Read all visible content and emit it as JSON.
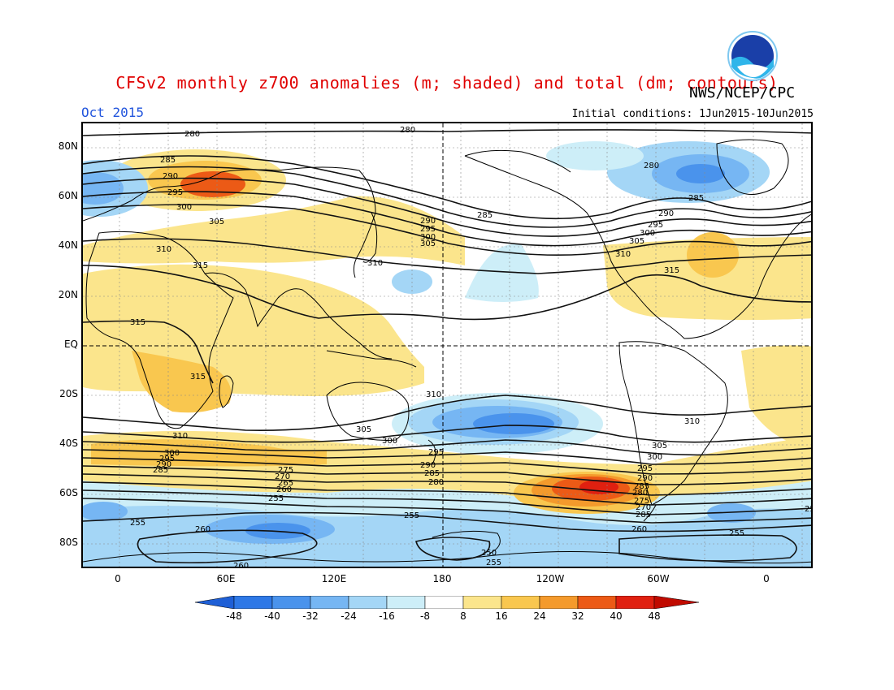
{
  "title": "CFSv2 monthly z700 anomalies (m; shaded) and total (dm; contours)",
  "organization": "NWS/NCEP/CPC",
  "logo_text": "NOAA",
  "period": "Oct 2015",
  "initial_conditions": "Initial conditions: 1Jun2015-10Jun2015",
  "latitude_labels": [
    "80N",
    "60N",
    "40N",
    "20N",
    "EQ",
    "20S",
    "40S",
    "60S",
    "80S"
  ],
  "longitude_labels": [
    "0",
    "60E",
    "120E",
    "180",
    "120W",
    "60W",
    "0"
  ],
  "colorbar": {
    "ticks": [
      "-48",
      "-40",
      "-32",
      "-24",
      "-16",
      "-8",
      "8",
      "16",
      "24",
      "32",
      "40",
      "48"
    ],
    "colors": [
      "#1e5fd6",
      "#2e78e6",
      "#4a93ec",
      "#76b6f3",
      "#a4d6f6",
      "#cdeef8",
      "#ffffff",
      "#fbe58c",
      "#f9c74f",
      "#f49a2c",
      "#ec5a16",
      "#e02010",
      "#c00a00"
    ]
  },
  "contour_labels": [
    "280",
    "285",
    "290",
    "295",
    "300",
    "305",
    "310",
    "315",
    "255",
    "260",
    "250",
    "265",
    "270",
    "275"
  ],
  "chart_data": {
    "type": "map",
    "anomaly_units": "m",
    "contour_units": "dm",
    "anomaly_levels": [
      -48,
      -40,
      -32,
      -24,
      -16,
      -8,
      8,
      16,
      24,
      32,
      40,
      48
    ],
    "contours": [
      {
        "value": 280,
        "lat": 80
      },
      {
        "value": 285,
        "lat": 68
      },
      {
        "value": 290,
        "lat": 63
      },
      {
        "value": 295,
        "lat": 58
      },
      {
        "value": 300,
        "lat": 52
      },
      {
        "value": 305,
        "lat": 46
      },
      {
        "value": 310,
        "lat": 37
      },
      {
        "value": 315,
        "lat": 22
      },
      {
        "value": 315,
        "lat": -10
      },
      {
        "value": 310,
        "lat": -28
      },
      {
        "value": 305,
        "lat": -37
      },
      {
        "value": 300,
        "lat": -42
      },
      {
        "value": 295,
        "lat": -45
      },
      {
        "value": 290,
        "lat": -48
      },
      {
        "value": 285,
        "lat": -51
      },
      {
        "value": 280,
        "lat": -54
      },
      {
        "value": 275,
        "lat": -57
      },
      {
        "value": 270,
        "lat": -60
      },
      {
        "value": 265,
        "lat": -62
      },
      {
        "value": 260,
        "lat": -66
      },
      {
        "value": 255,
        "lat": -70
      },
      {
        "value": 250,
        "lat": -78
      }
    ]
  }
}
